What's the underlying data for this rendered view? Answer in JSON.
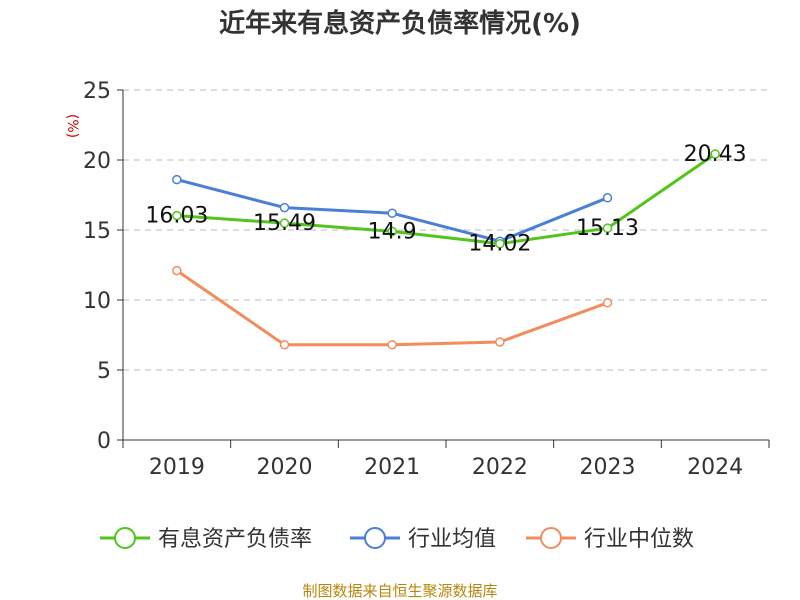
{
  "chart_data": {
    "type": "line",
    "title": "近年来有息资产负债率情况(%)",
    "ylabel": "(%)",
    "categories": [
      "2019",
      "2020",
      "2021",
      "2022",
      "2023",
      "2024"
    ],
    "ylim": [
      0,
      25
    ],
    "yticks": [
      0,
      5,
      10,
      15,
      20,
      25
    ],
    "grid": true,
    "legend_position": "bottom",
    "series": [
      {
        "name": "有息资产负债率",
        "color": "#52c41a",
        "values": [
          16.03,
          15.49,
          14.9,
          14.02,
          15.13,
          20.43
        ],
        "labels": [
          "16.03",
          "15.49",
          "14.9",
          "14.02",
          "15.13",
          "20.43"
        ]
      },
      {
        "name": "行业均值",
        "color": "#4a7fd8",
        "values": [
          18.6,
          16.6,
          16.2,
          14.2,
          17.3,
          null
        ]
      },
      {
        "name": "行业中位数",
        "color": "#f28c5a",
        "values": [
          12.1,
          6.8,
          6.8,
          7.0,
          9.8,
          null
        ]
      }
    ]
  },
  "footer": {
    "source": "制图数据来自恒生聚源数据库"
  }
}
